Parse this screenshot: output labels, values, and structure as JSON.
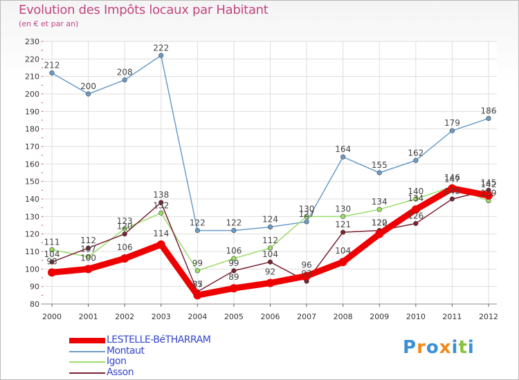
{
  "chart_data": {
    "type": "line",
    "title": "Evolution des Impôts locaux par Habitant",
    "subtitle": "(en € et par an)",
    "xlabel": "",
    "ylabel": "",
    "ylim": [
      80,
      230
    ],
    "yticks": [
      80,
      90,
      100,
      110,
      120,
      130,
      140,
      150,
      160,
      170,
      180,
      190,
      200,
      210,
      220,
      230
    ],
    "categories": [
      "2000",
      "2001",
      "2002",
      "2003",
      "2004",
      "2005",
      "2006",
      "2007",
      "2008",
      "2009",
      "2010",
      "2011",
      "2012"
    ],
    "grid": true,
    "series": [
      {
        "name": "LESTELLE-BéTHARRAM",
        "color": "#ee0000",
        "values": [
          98,
          100,
          106,
          114,
          85,
          89,
          92,
          96,
          104,
          120,
          134,
          146,
          142
        ]
      },
      {
        "name": "Montaut",
        "color": "#6a9bc8",
        "values": [
          212,
          200,
          208,
          222,
          122,
          122,
          124,
          127,
          164,
          155,
          162,
          179,
          186
        ]
      },
      {
        "name": "Igon",
        "color": "#99dd66",
        "values": [
          111,
          107,
          123,
          132,
          99,
          106,
          112,
          130,
          130,
          134,
          140,
          147,
          139
        ]
      },
      {
        "name": "Asson",
        "color": "#7a2030",
        "values": [
          104,
          112,
          120,
          138,
          87,
          99,
          104,
          93,
          121,
          122,
          126,
          140,
          145
        ]
      }
    ]
  },
  "logo": {
    "text": "Proxiti",
    "letters": [
      "P",
      "r",
      "o",
      "x",
      "i",
      "t",
      "i"
    ],
    "colors": [
      "#3a8fd6",
      "#f08a1a",
      "#3a8fd6",
      "#f08a1a",
      "#3a8fd6",
      "#88c23a",
      "#3a8fd6"
    ]
  }
}
